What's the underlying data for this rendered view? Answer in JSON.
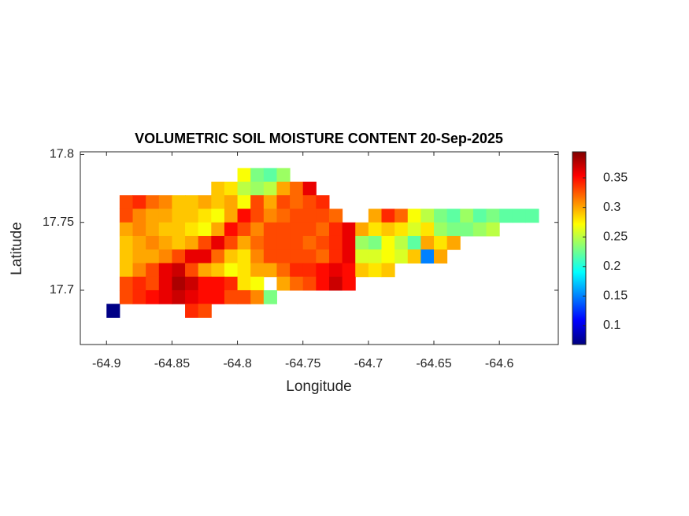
{
  "chart_data": {
    "type": "heatmap",
    "title": "VOLUMETRIC SOIL MOISTURE CONTENT 20-Sep-2025",
    "x_label": "Longitude",
    "y_label": "Latitude",
    "x": [
      -64.895,
      -64.885,
      -64.875,
      -64.865,
      -64.855,
      -64.845,
      -64.835,
      -64.825,
      -64.815,
      -64.805,
      -64.795,
      -64.785,
      -64.775,
      -64.765,
      -64.755,
      -64.745,
      -64.735,
      -64.725,
      -64.715,
      -64.705,
      -64.695,
      -64.685,
      -64.675,
      -64.665,
      -64.655,
      -64.645,
      -64.635,
      -64.625,
      -64.615,
      -64.605,
      -64.595,
      -64.585,
      -64.575,
      -64.565
    ],
    "y": [
      17.785,
      17.775,
      17.765,
      17.755,
      17.745,
      17.735,
      17.725,
      17.715,
      17.705,
      17.695,
      17.685
    ],
    "z": [
      [
        null,
        null,
        null,
        null,
        null,
        null,
        null,
        null,
        null,
        null,
        0.27,
        0.23,
        0.22,
        0.24,
        null,
        null,
        null,
        null,
        null,
        null,
        null,
        null,
        null,
        null,
        null,
        null,
        null,
        null,
        null,
        null,
        null,
        null,
        null,
        null
      ],
      [
        null,
        null,
        null,
        null,
        null,
        null,
        null,
        null,
        0.29,
        0.28,
        0.25,
        0.24,
        0.25,
        0.3,
        0.32,
        0.36,
        null,
        null,
        null,
        null,
        null,
        null,
        null,
        null,
        null,
        null,
        null,
        null,
        null,
        null,
        null,
        null,
        null,
        null
      ],
      [
        null,
        0.33,
        0.34,
        0.32,
        0.31,
        0.29,
        0.29,
        0.3,
        0.29,
        0.3,
        0.27,
        0.33,
        0.3,
        0.33,
        0.32,
        0.33,
        0.34,
        null,
        null,
        null,
        null,
        null,
        null,
        null,
        null,
        null,
        null,
        null,
        null,
        null,
        null,
        null,
        null,
        null
      ],
      [
        null,
        0.33,
        0.31,
        0.3,
        0.3,
        0.29,
        0.29,
        0.28,
        0.27,
        0.3,
        0.35,
        0.33,
        0.31,
        0.32,
        0.33,
        0.33,
        0.33,
        0.32,
        null,
        null,
        0.3,
        0.34,
        0.32,
        0.27,
        0.25,
        0.23,
        0.22,
        0.24,
        0.22,
        0.23,
        0.22,
        0.22,
        0.22,
        null
      ],
      [
        null,
        0.3,
        0.31,
        0.3,
        0.29,
        0.29,
        0.28,
        0.27,
        0.3,
        0.35,
        0.33,
        0.31,
        0.33,
        0.33,
        0.33,
        0.33,
        0.32,
        0.34,
        0.36,
        0.3,
        0.28,
        0.29,
        0.28,
        0.26,
        0.28,
        0.24,
        0.23,
        0.23,
        0.24,
        0.25,
        null,
        null,
        null,
        null
      ],
      [
        null,
        0.29,
        0.3,
        0.31,
        0.3,
        0.29,
        0.3,
        0.33,
        0.36,
        0.33,
        0.3,
        0.32,
        0.33,
        0.33,
        0.33,
        0.32,
        0.33,
        0.34,
        0.36,
        0.24,
        0.23,
        0.27,
        0.25,
        0.22,
        0.3,
        0.28,
        0.3,
        null,
        null,
        null,
        null,
        null,
        null,
        null
      ],
      [
        null,
        0.29,
        0.3,
        0.3,
        0.31,
        0.33,
        0.36,
        0.36,
        0.32,
        0.29,
        0.28,
        0.31,
        0.33,
        0.33,
        0.33,
        0.33,
        0.32,
        0.34,
        0.36,
        0.26,
        0.26,
        0.27,
        0.26,
        0.29,
        0.15,
        0.3,
        null,
        null,
        null,
        null,
        null,
        null,
        null,
        null
      ],
      [
        null,
        0.29,
        0.31,
        0.33,
        0.36,
        0.37,
        0.33,
        0.3,
        0.29,
        0.27,
        0.28,
        0.3,
        0.3,
        0.32,
        0.34,
        0.34,
        0.35,
        0.36,
        0.35,
        0.29,
        0.28,
        0.29,
        null,
        null,
        null,
        null,
        null,
        null,
        null,
        null,
        null,
        null,
        null,
        null
      ],
      [
        null,
        0.33,
        0.34,
        0.33,
        0.36,
        0.38,
        0.37,
        0.35,
        0.35,
        0.34,
        0.28,
        0.27,
        null,
        0.3,
        0.32,
        0.33,
        0.35,
        0.37,
        0.35,
        null,
        null,
        null,
        null,
        null,
        null,
        null,
        null,
        null,
        null,
        null,
        null,
        null,
        null,
        null
      ],
      [
        null,
        0.33,
        0.34,
        0.35,
        0.36,
        0.37,
        0.36,
        0.35,
        0.35,
        0.33,
        0.33,
        0.31,
        0.23,
        null,
        null,
        null,
        null,
        null,
        null,
        null,
        null,
        null,
        null,
        null,
        null,
        null,
        null,
        null,
        null,
        null,
        null,
        null,
        null,
        null
      ],
      [
        0.07,
        null,
        null,
        null,
        null,
        null,
        0.34,
        0.33,
        null,
        null,
        null,
        null,
        null,
        null,
        null,
        null,
        null,
        null,
        null,
        null,
        null,
        null,
        null,
        null,
        null,
        null,
        null,
        null,
        null,
        null,
        null,
        null,
        null,
        null
      ]
    ],
    "xlim": [
      -64.92,
      -64.555
    ],
    "ylim": [
      17.66,
      17.802
    ],
    "xticks": [
      -64.9,
      -64.85,
      -64.8,
      -64.75,
      -64.7,
      -64.65,
      -64.6
    ],
    "yticks": [
      17.7,
      17.75,
      17.8
    ],
    "colormap": "jet",
    "clim": [
      0.068,
      0.394
    ],
    "cticks": [
      0.1,
      0.15,
      0.2,
      0.25,
      0.3,
      0.35
    ]
  }
}
